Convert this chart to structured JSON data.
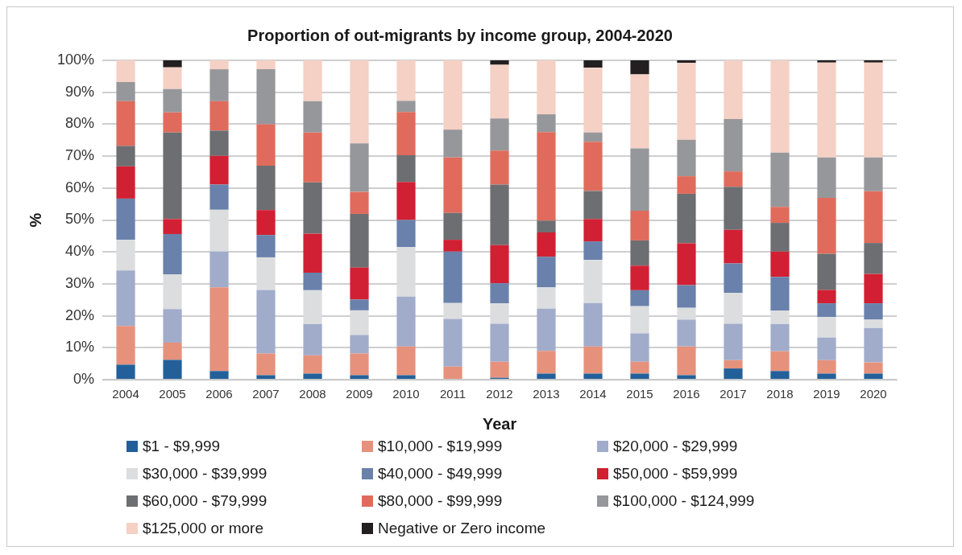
{
  "chart_data": {
    "type": "bar",
    "stacked": true,
    "title": "Proportion of out-migrants by income group, 2004-2020",
    "xlabel": "Year",
    "ylabel": "%",
    "categories": [
      "2004",
      "2005",
      "2006",
      "2007",
      "2008",
      "2009",
      "2010",
      "2011",
      "2012",
      "2013",
      "2014",
      "2015",
      "2016",
      "2017",
      "2018",
      "2019",
      "2020"
    ],
    "ylim": [
      0,
      100
    ],
    "yticks": [
      {
        "value": 0,
        "label": "0%"
      },
      {
        "value": 10,
        "label": "10%"
      },
      {
        "value": 20,
        "label": "20%"
      },
      {
        "value": 30,
        "label": "30%"
      },
      {
        "value": 40,
        "label": "40%"
      },
      {
        "value": 50,
        "label": "50%"
      },
      {
        "value": 60,
        "label": "60%"
      },
      {
        "value": 70,
        "label": "70%"
      },
      {
        "value": 80,
        "label": "80%"
      },
      {
        "value": 90,
        "label": "90%"
      },
      {
        "value": 100,
        "label": "100%"
      }
    ],
    "grid": "y",
    "legend": "bottom",
    "series": [
      {
        "name": "$1 - $9,999",
        "color": "#23609a",
        "values": [
          4.7,
          6.2,
          2.7,
          1.4,
          1.9,
          1.4,
          1.4,
          0,
          0.6,
          1.9,
          1.9,
          1.9,
          1.4,
          3.5,
          2.7,
          1.9,
          1.9
        ]
      },
      {
        "name": "$10,000 - $19,999",
        "color": "#e6917c",
        "values": [
          12.1,
          5.4,
          26.2,
          6.8,
          5.7,
          6.8,
          9.0,
          4.1,
          5.0,
          7.1,
          8.5,
          3.7,
          9.0,
          2.6,
          6.2,
          4.2,
          3.5
        ]
      },
      {
        "name": "$20,000 - $29,999",
        "color": "#a1accb",
        "values": [
          17.4,
          10.5,
          11.2,
          19.9,
          9.8,
          5.8,
          15.6,
          14.9,
          11.9,
          13.2,
          13.6,
          8.9,
          8.4,
          11.4,
          8.5,
          7.1,
          10.8
        ]
      },
      {
        "name": "$30,000 - $39,999",
        "color": "#dcdddf",
        "values": [
          9.6,
          10.9,
          13.1,
          10.2,
          10.6,
          7.7,
          15.5,
          5.0,
          6.4,
          6.7,
          13.5,
          8.5,
          3.7,
          9.7,
          4.2,
          6.4,
          2.6
        ]
      },
      {
        "name": "$40,000 - $49,999",
        "color": "#6981ab",
        "values": [
          12.9,
          12.6,
          7.9,
          7.0,
          5.5,
          3.4,
          8.5,
          16.1,
          6.3,
          9.6,
          5.8,
          5.0,
          7.1,
          9.2,
          10.6,
          4.3,
          5.1
        ]
      },
      {
        "name": "$50,000 - $59,999",
        "color": "#d12033",
        "values": [
          10.1,
          4.7,
          9.0,
          7.8,
          12.2,
          10.0,
          11.9,
          3.7,
          11.9,
          7.6,
          7.0,
          7.7,
          13.1,
          10.5,
          7.9,
          4.2,
          9.2
        ]
      },
      {
        "name": "$60,000 - $79,999",
        "color": "#6d6e72",
        "values": [
          6.4,
          27.1,
          7.9,
          13.9,
          16.1,
          16.8,
          8.4,
          8.4,
          19.0,
          3.7,
          8.8,
          7.9,
          15.5,
          13.5,
          9.0,
          11.3,
          9.7
        ]
      },
      {
        "name": "$80,000 - $99,999",
        "color": "#e06b5c",
        "values": [
          14.0,
          6.3,
          9.2,
          13.0,
          15.6,
          6.9,
          13.5,
          17.4,
          10.6,
          27.7,
          15.4,
          9.3,
          5.5,
          4.8,
          5.0,
          17.5,
          16.2
        ]
      },
      {
        "name": "$100,000 - $124,999",
        "color": "#96979b",
        "values": [
          6.0,
          7.3,
          10.0,
          17.2,
          9.8,
          15.2,
          3.5,
          8.7,
          10.1,
          5.6,
          2.9,
          19.5,
          11.4,
          16.4,
          17.0,
          12.7,
          10.6
        ]
      },
      {
        "name": "$125,000 or more",
        "color": "#f5d0c4",
        "values": [
          6.8,
          6.8,
          2.8,
          2.8,
          12.8,
          26.0,
          12.7,
          21.7,
          16.8,
          16.9,
          20.3,
          23.2,
          24.1,
          18.4,
          28.9,
          29.7,
          29.7
        ]
      },
      {
        "name": "Negative or Zero income",
        "color": "#231f20",
        "values": [
          0,
          2.2,
          0,
          0,
          0,
          0,
          0,
          0,
          1.4,
          0,
          2.3,
          4.4,
          0.8,
          0,
          0,
          0.7,
          0.7
        ]
      }
    ]
  }
}
